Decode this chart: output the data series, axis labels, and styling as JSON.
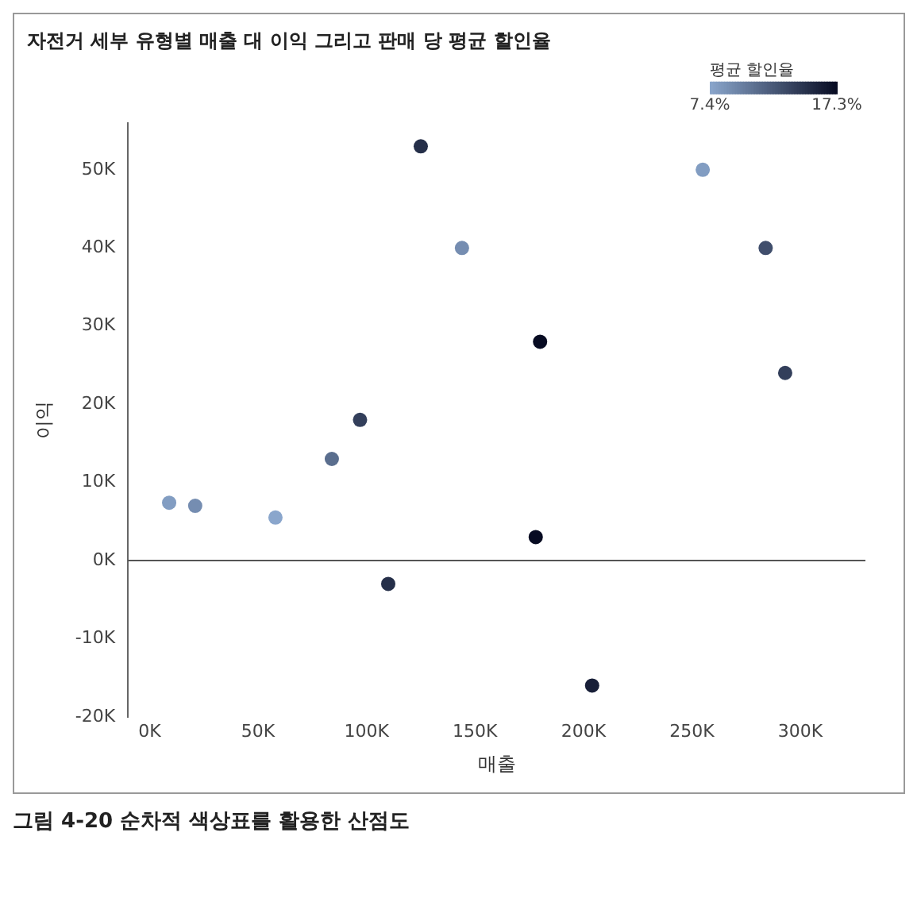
{
  "chart_data": {
    "type": "scatter",
    "title": "자전거 세부 유형별 매출 대 이익 그리고 판매 당 평균 할인율",
    "xlabel": "매출",
    "ylabel": "이익",
    "clabel": "평균 할인율",
    "series": [
      {
        "x": [
          9000,
          21000,
          58000,
          84000,
          97000,
          110000,
          125000,
          144000,
          178000,
          180000,
          204000,
          255000,
          284000,
          293000
        ],
        "values": [
          7400,
          7000,
          5500,
          13000,
          18000,
          -3000,
          53000,
          40000,
          3000,
          28000,
          -16000,
          50000,
          40000,
          24000
        ],
        "cvalues": [
          8,
          9,
          7.4,
          11,
          14,
          15,
          15,
          9,
          17.3,
          17.3,
          16,
          8,
          13,
          14
        ]
      }
    ],
    "xlim": [
      -10000,
      330000
    ],
    "xticks": [
      {
        "value": 0,
        "label": "0K"
      },
      {
        "value": 50000,
        "label": "50K"
      },
      {
        "value": 100000,
        "label": "100K"
      },
      {
        "value": 150000,
        "label": "150K"
      },
      {
        "value": 200000,
        "label": "200K"
      },
      {
        "value": 250000,
        "label": "250K"
      },
      {
        "value": 300000,
        "label": "300K"
      }
    ],
    "ylim": [
      -20000,
      56000
    ],
    "yticks": [
      {
        "value": -20000,
        "label": "-20K"
      },
      {
        "value": -10000,
        "label": "-10K"
      },
      {
        "value": 0,
        "label": "0K"
      },
      {
        "value": 10000,
        "label": "10K"
      },
      {
        "value": 20000,
        "label": "20K"
      },
      {
        "value": 30000,
        "label": "30K"
      },
      {
        "value": 40000,
        "label": "40K"
      },
      {
        "value": 50000,
        "label": "50K"
      }
    ],
    "clim": [
      7.4,
      17.3
    ],
    "cticks": [
      {
        "value": 7.4,
        "label": "7.4%"
      },
      {
        "value": 17.3,
        "label": "17.3%"
      }
    ],
    "ref_lines": [
      {
        "axis": "y",
        "value": 0,
        "color": "#555555"
      }
    ],
    "marker": "circle",
    "annotations": [
      "그림 4-20 순차적 색상표를 활용한 산점도"
    ]
  }
}
